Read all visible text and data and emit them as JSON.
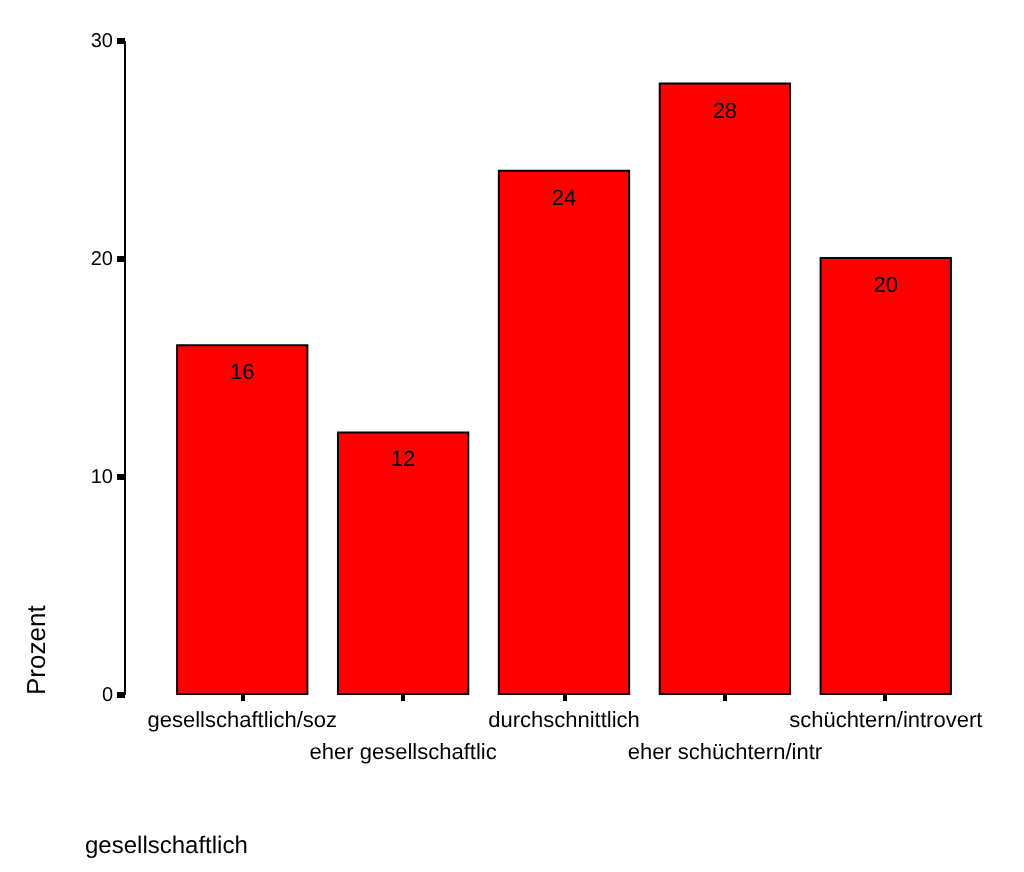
{
  "chart_data": {
    "type": "bar",
    "xlabel": "gesellschaftlich",
    "ylabel": "Prozent",
    "categories": [
      "gesellschaftlich/soz",
      "eher gesellschaftlic",
      "durchschnittlich",
      "eher schüchtern/intr",
      "schüchtern/introvert"
    ],
    "values": [
      16,
      12,
      24,
      28,
      20
    ],
    "color": "#ff0000",
    "ylim": [
      0,
      30
    ],
    "yticks": [
      0,
      10,
      20,
      30
    ],
    "data_labels": true,
    "grid": false
  }
}
